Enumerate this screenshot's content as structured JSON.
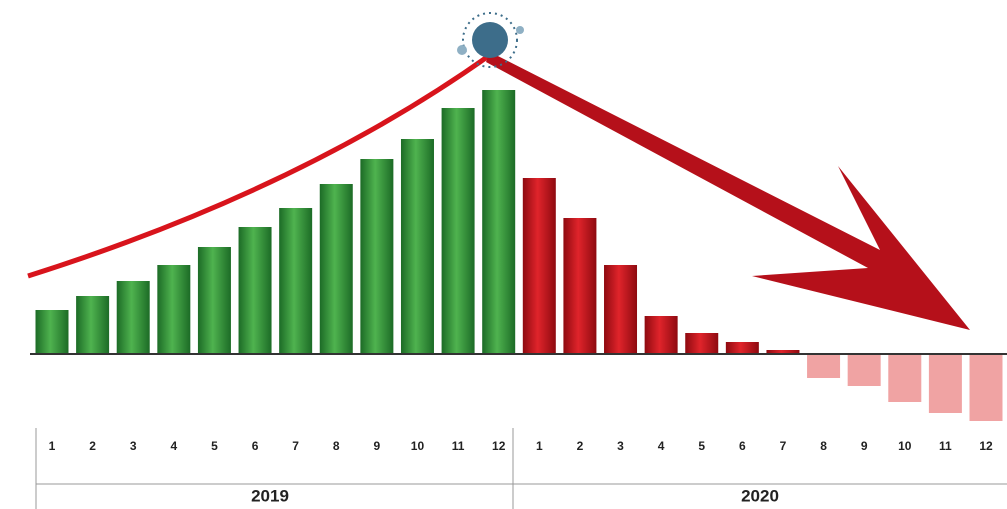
{
  "chart_data": {
    "type": "bar",
    "categories": [
      "1",
      "2",
      "3",
      "4",
      "5",
      "6",
      "7",
      "8",
      "9",
      "10",
      "11",
      "12",
      "1",
      "2",
      "3",
      "4",
      "5",
      "6",
      "7",
      "8",
      "9",
      "10",
      "11",
      "12"
    ],
    "values": [
      44,
      58,
      73,
      89,
      107,
      127,
      146,
      170,
      195,
      215,
      246,
      264,
      176,
      136,
      89,
      38,
      21,
      12,
      4,
      -24,
      -32,
      -48,
      -59,
      -67
    ],
    "groups": [
      "2019",
      "2020"
    ],
    "group_colors": [
      "#2a8c35",
      "#c8121a"
    ],
    "negative_color": "#f0a3a3"
  }
}
